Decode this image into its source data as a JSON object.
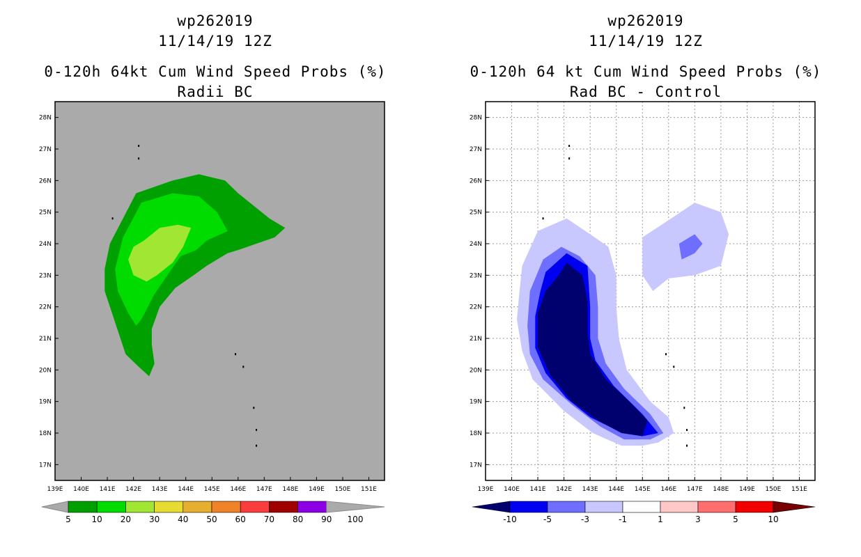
{
  "panels": [
    {
      "id": "left",
      "title_line1": "wp262019",
      "title_line2": "11/14/19 12Z",
      "title_line3": "0-120h 64kt Cum Wind Speed Probs (%)",
      "title_line4": "Radii BC",
      "background": "#aaaaaa",
      "colorbar": {
        "labels": [
          "5",
          "10",
          "20",
          "30",
          "40",
          "50",
          "60",
          "70",
          "80",
          "90",
          "100"
        ],
        "colors": [
          "#00a000",
          "#00dc00",
          "#a0e632",
          "#e6dc32",
          "#e6af2d",
          "#f08228",
          "#fa3c3c",
          "#a00000",
          "#8c00e6"
        ],
        "end_arrow_color": "#aaaaaa"
      }
    },
    {
      "id": "right",
      "title_line1": "wp262019",
      "title_line2": "11/14/19 12Z",
      "title_line3": "0-120h 64 kt Cum Wind Speed Probs (%)",
      "title_line4": "Rad BC - Control",
      "background": "#ffffff",
      "colorbar": {
        "labels": [
          "-10",
          "-5",
          "-3",
          "-1",
          "1",
          "3",
          "5",
          "10"
        ],
        "colors": [
          "#0000f0",
          "#6e6eff",
          "#c8c8ff",
          "#ffffff",
          "#ffc8c8",
          "#ff6e6e",
          "#f00000"
        ],
        "low_arrow_color": "#00006e",
        "high_arrow_color": "#780000"
      }
    }
  ],
  "chart_data": [
    {
      "type": "heatmap",
      "title": "0-120h 64kt Cum Wind Speed Probs (%) — Radii BC",
      "storm": "wp262019",
      "valid": "11/14/19 12Z",
      "x_ticks": [
        "139E",
        "140E",
        "141E",
        "142E",
        "143E",
        "144E",
        "145E",
        "146E",
        "147E",
        "148E",
        "149E",
        "150E",
        "151E"
      ],
      "y_ticks": [
        "17N",
        "18N",
        "19N",
        "20N",
        "21N",
        "22N",
        "23N",
        "24N",
        "25N",
        "26N",
        "27N",
        "28N"
      ],
      "xlim": [
        139,
        151.6
      ],
      "ylim": [
        16.5,
        28.5
      ],
      "grid": false,
      "contours": [
        {
          "level": 5,
          "color": "#00a000",
          "points": [
            [
              142.1,
              25.6
            ],
            [
              143.5,
              26.0
            ],
            [
              144.5,
              26.2
            ],
            [
              145.5,
              26.0
            ],
            [
              146.0,
              25.6
            ],
            [
              147.2,
              24.8
            ],
            [
              147.8,
              24.5
            ],
            [
              147.4,
              24.2
            ],
            [
              146.0,
              23.8
            ],
            [
              145.6,
              23.7
            ],
            [
              144.8,
              23.3
            ],
            [
              144.3,
              23.0
            ],
            [
              143.6,
              22.6
            ],
            [
              143.0,
              22.0
            ],
            [
              142.7,
              21.3
            ],
            [
              142.7,
              20.8
            ],
            [
              142.8,
              20.2
            ],
            [
              142.6,
              19.8
            ],
            [
              142.2,
              20.1
            ],
            [
              141.7,
              20.5
            ],
            [
              141.3,
              21.5
            ],
            [
              140.9,
              22.5
            ],
            [
              140.9,
              23.2
            ],
            [
              141.1,
              24.0
            ],
            [
              141.6,
              24.8
            ]
          ]
        },
        {
          "level": 10,
          "color": "#00dc00",
          "points": [
            [
              142.3,
              25.3
            ],
            [
              143.5,
              25.6
            ],
            [
              144.5,
              25.5
            ],
            [
              145.2,
              25.0
            ],
            [
              145.6,
              24.4
            ],
            [
              144.8,
              24.1
            ],
            [
              144.4,
              23.8
            ],
            [
              143.8,
              23.6
            ],
            [
              143.3,
              23.0
            ],
            [
              142.8,
              22.4
            ],
            [
              142.3,
              21.6
            ],
            [
              142.1,
              21.4
            ],
            [
              141.8,
              21.8
            ],
            [
              141.4,
              22.5
            ],
            [
              141.3,
              23.2
            ],
            [
              141.6,
              24.2
            ]
          ]
        },
        {
          "level": 20,
          "color": "#a0e632",
          "points": [
            [
              142.4,
              24.1
            ],
            [
              143.0,
              24.5
            ],
            [
              143.7,
              24.6
            ],
            [
              144.2,
              24.5
            ],
            [
              143.9,
              23.9
            ],
            [
              143.5,
              23.4
            ],
            [
              142.9,
              23.0
            ],
            [
              142.5,
              22.8
            ],
            [
              142.0,
              23.0
            ],
            [
              141.8,
              23.5
            ],
            [
              142.0,
              23.9
            ]
          ]
        }
      ],
      "land": [
        [
          142.2,
          27.1
        ],
        [
          142.2,
          26.7
        ],
        [
          141.2,
          24.8
        ],
        [
          145.9,
          20.5
        ],
        [
          146.2,
          20.1
        ],
        [
          146.6,
          18.8
        ],
        [
          146.7,
          18.1
        ],
        [
          146.7,
          17.6
        ]
      ]
    },
    {
      "type": "heatmap",
      "title": "0-120h 64 kt Cum Wind Speed Probs (%) — Rad BC - Control",
      "storm": "wp262019",
      "valid": "11/14/19 12Z",
      "x_ticks": [
        "139E",
        "140E",
        "141E",
        "142E",
        "143E",
        "144E",
        "145E",
        "146E",
        "147E",
        "148E",
        "149E",
        "150E",
        "151E"
      ],
      "y_ticks": [
        "17N",
        "18N",
        "19N",
        "20N",
        "21N",
        "22N",
        "23N",
        "24N",
        "25N",
        "26N",
        "27N",
        "28N"
      ],
      "xlim": [
        139,
        151.6
      ],
      "ylim": [
        16.5,
        28.5
      ],
      "grid": true,
      "contours": [
        {
          "level": -1,
          "color": "#c8c8ff",
          "points": [
            [
              141.0,
              24.4
            ],
            [
              142.1,
              24.8
            ],
            [
              143.0,
              24.3
            ],
            [
              143.7,
              23.9
            ],
            [
              144.0,
              23.0
            ],
            [
              144.0,
              22.0
            ],
            [
              144.1,
              21.0
            ],
            [
              144.4,
              20.0
            ],
            [
              145.3,
              19.0
            ],
            [
              146.0,
              18.5
            ],
            [
              146.2,
              18.0
            ],
            [
              145.6,
              17.7
            ],
            [
              145.0,
              17.6
            ],
            [
              144.2,
              17.6
            ],
            [
              143.1,
              18.0
            ],
            [
              142.0,
              18.7
            ],
            [
              140.8,
              19.7
            ],
            [
              140.4,
              20.6
            ],
            [
              140.2,
              21.6
            ],
            [
              140.3,
              22.5
            ],
            [
              140.4,
              23.3
            ]
          ]
        },
        {
          "level": -1,
          "color": "#c8c8ff",
          "points": [
            [
              146.1,
              24.8
            ],
            [
              147.0,
              25.3
            ],
            [
              148.0,
              25.0
            ],
            [
              148.3,
              24.3
            ],
            [
              148.0,
              23.3
            ],
            [
              147.0,
              23.0
            ],
            [
              146.0,
              22.9
            ],
            [
              145.4,
              22.5
            ],
            [
              145.0,
              23.0
            ],
            [
              145.0,
              24.2
            ]
          ]
        },
        {
          "level": -3,
          "color": "#6e6eff",
          "points": [
            [
              141.2,
              23.5
            ],
            [
              141.9,
              23.9
            ],
            [
              142.6,
              23.6
            ],
            [
              143.2,
              23.0
            ],
            [
              143.3,
              22.0
            ],
            [
              143.3,
              21.0
            ],
            [
              143.6,
              20.2
            ],
            [
              144.3,
              19.4
            ],
            [
              145.3,
              18.6
            ],
            [
              145.8,
              18.0
            ],
            [
              145.3,
              17.8
            ],
            [
              144.3,
              17.8
            ],
            [
              143.4,
              18.2
            ],
            [
              142.3,
              18.9
            ],
            [
              141.2,
              19.7
            ],
            [
              140.7,
              20.5
            ],
            [
              140.6,
              21.4
            ],
            [
              140.7,
              22.5
            ]
          ]
        },
        {
          "level": -3,
          "color": "#6e6eff",
          "points": [
            [
              146.4,
              24.0
            ],
            [
              147.0,
              24.3
            ],
            [
              147.3,
              24.0
            ],
            [
              147.0,
              23.7
            ],
            [
              146.5,
              23.5
            ]
          ]
        },
        {
          "level": -5,
          "color": "#0000f0",
          "points": [
            [
              141.3,
              23.1
            ],
            [
              142.1,
              23.7
            ],
            [
              142.9,
              23.3
            ],
            [
              143.0,
              22.0
            ],
            [
              143.0,
              21.0
            ],
            [
              143.2,
              20.3
            ],
            [
              143.9,
              19.5
            ],
            [
              145.0,
              18.6
            ],
            [
              145.6,
              18.0
            ],
            [
              145.0,
              17.9
            ],
            [
              144.0,
              18.1
            ],
            [
              143.0,
              18.5
            ],
            [
              142.1,
              19.1
            ],
            [
              141.3,
              19.9
            ],
            [
              140.9,
              20.7
            ],
            [
              140.9,
              21.7
            ],
            [
              141.1,
              22.5
            ]
          ]
        },
        {
          "level": -10,
          "color": "#00006e",
          "points": [
            [
              141.8,
              23.0
            ],
            [
              142.1,
              23.4
            ],
            [
              142.7,
              23.0
            ],
            [
              142.9,
              22.2
            ],
            [
              142.9,
              21.2
            ],
            [
              143.0,
              20.5
            ],
            [
              143.6,
              19.7
            ],
            [
              144.5,
              19.0
            ],
            [
              145.2,
              18.4
            ],
            [
              145.0,
              17.9
            ],
            [
              144.2,
              18.0
            ],
            [
              143.3,
              18.4
            ],
            [
              142.3,
              19.0
            ],
            [
              141.5,
              19.8
            ],
            [
              141.0,
              20.7
            ],
            [
              141.0,
              21.8
            ],
            [
              141.3,
              22.5
            ]
          ]
        }
      ],
      "land": [
        [
          142.2,
          27.1
        ],
        [
          142.2,
          26.7
        ],
        [
          141.2,
          24.8
        ],
        [
          145.9,
          20.5
        ],
        [
          146.2,
          20.1
        ],
        [
          146.6,
          18.8
        ],
        [
          146.7,
          18.1
        ],
        [
          146.7,
          17.6
        ]
      ]
    }
  ]
}
